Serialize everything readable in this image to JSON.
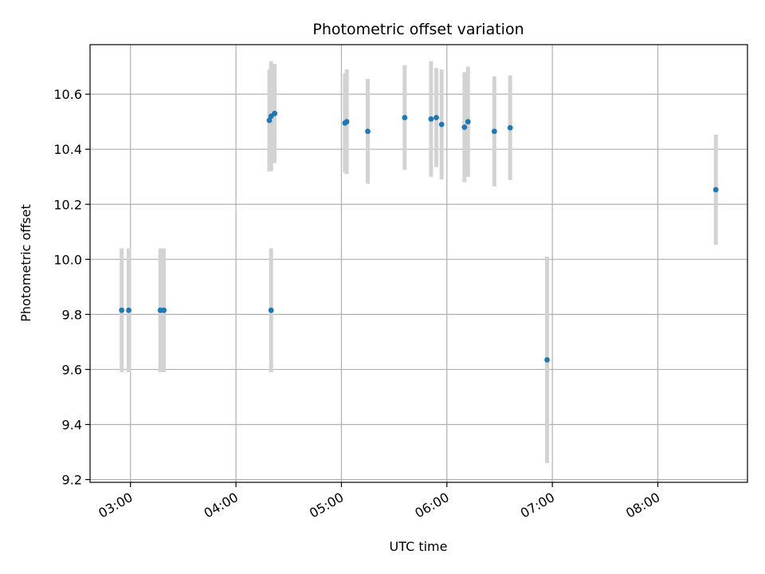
{
  "chart_data": {
    "type": "scatter",
    "title": "Photometric offset variation",
    "xlabel": "UTC time",
    "ylabel": "Photometric offset",
    "grid": true,
    "x_unit": "UTC time (HH:MM)",
    "xlim": [
      "02:37",
      "08:51"
    ],
    "ylim": [
      9.19,
      10.78
    ],
    "x_ticks": [
      "03:00",
      "04:00",
      "05:00",
      "06:00",
      "07:00",
      "08:00"
    ],
    "y_ticks": [
      "9.2",
      "9.4",
      "9.6",
      "9.8",
      "10.0",
      "10.2",
      "10.4",
      "10.6"
    ],
    "series": [
      {
        "marker_color": "#1f77b4",
        "errorbar_color": "#d3d3d3",
        "points": [
          {
            "x": "02:55",
            "y": 9.815,
            "err": 0.225
          },
          {
            "x": "02:59",
            "y": 9.815,
            "err": 0.225
          },
          {
            "x": "03:17",
            "y": 9.815,
            "err": 0.225
          },
          {
            "x": "03:19",
            "y": 9.815,
            "err": 0.225
          },
          {
            "x": "04:20",
            "y": 9.815,
            "err": 0.225
          },
          {
            "x": "04:19",
            "y": 10.505,
            "err": 0.185
          },
          {
            "x": "04:20",
            "y": 10.52,
            "err": 0.2
          },
          {
            "x": "04:22",
            "y": 10.53,
            "err": 0.18
          },
          {
            "x": "05:02",
            "y": 10.495,
            "err": 0.18
          },
          {
            "x": "05:03",
            "y": 10.5,
            "err": 0.19
          },
          {
            "x": "05:15",
            "y": 10.465,
            "err": 0.19
          },
          {
            "x": "05:36",
            "y": 10.515,
            "err": 0.19
          },
          {
            "x": "05:51",
            "y": 10.51,
            "err": 0.21
          },
          {
            "x": "05:54",
            "y": 10.515,
            "err": 0.18
          },
          {
            "x": "05:57",
            "y": 10.49,
            "err": 0.2
          },
          {
            "x": "06:10",
            "y": 10.48,
            "err": 0.2
          },
          {
            "x": "06:12",
            "y": 10.5,
            "err": 0.2
          },
          {
            "x": "06:27",
            "y": 10.465,
            "err": 0.2
          },
          {
            "x": "06:36",
            "y": 10.478,
            "err": 0.19
          },
          {
            "x": "06:57",
            "y": 9.635,
            "err": 0.375
          },
          {
            "x": "08:33",
            "y": 10.253,
            "err": 0.2
          }
        ]
      }
    ]
  }
}
